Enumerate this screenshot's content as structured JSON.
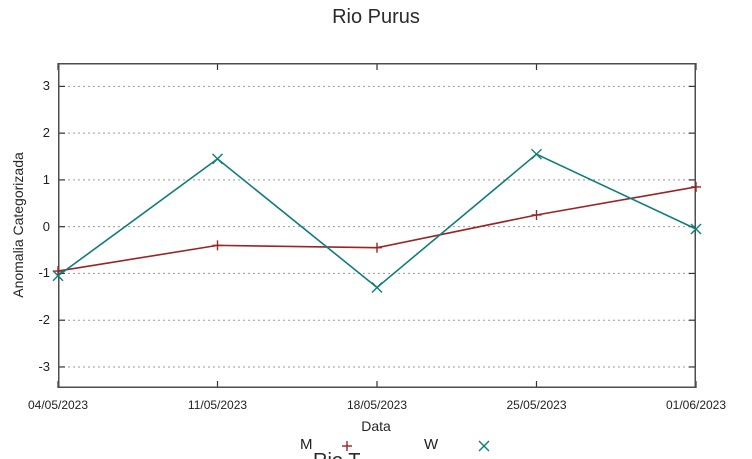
{
  "title": "Rio Purus",
  "next_chart_title_partial": "Rio T",
  "chart_data": {
    "type": "line",
    "title": "Rio Purus",
    "xlabel": "Data",
    "ylabel": "Anomalia Categorizada",
    "categories": [
      "04/05/2023",
      "11/05/2023",
      "18/05/2023",
      "25/05/2023",
      "01/06/2023"
    ],
    "series": [
      {
        "name": "M",
        "color": "#972525",
        "marker": "plus",
        "values": [
          -0.95,
          -0.4,
          -0.45,
          0.25,
          0.85
        ]
      },
      {
        "name": "W",
        "color": "#117c7c",
        "marker": "cross",
        "values": [
          -1.05,
          1.45,
          -1.3,
          1.55,
          -0.05
        ]
      }
    ],
    "ylim": [
      -3.45,
      3.5
    ],
    "yticks": [
      -3,
      -2,
      -1,
      0,
      1,
      2,
      3
    ],
    "grid": "horizontal-dashed",
    "legend_position": "below-xlabel"
  },
  "colors": {
    "grid": "#9a9a9a",
    "border": "#4d4d4d",
    "tick": "#333333",
    "background": "#ffffff"
  }
}
